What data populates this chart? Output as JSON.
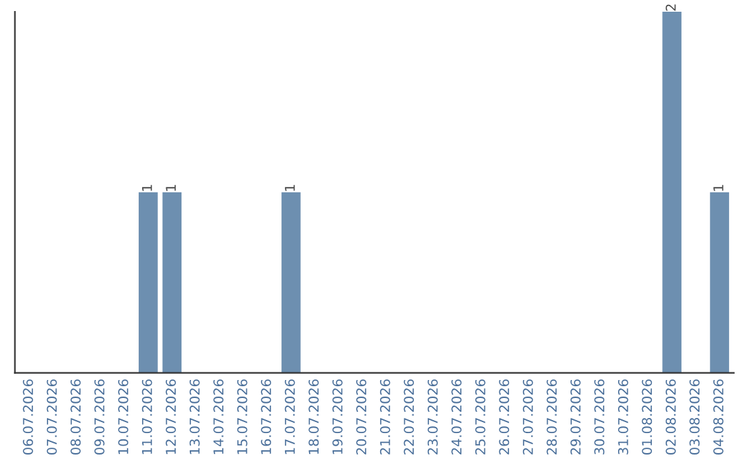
{
  "chart_data": {
    "type": "bar",
    "categories": [
      "06.07.2026",
      "07.07.2026",
      "08.07.2026",
      "09.07.2026",
      "10.07.2026",
      "11.07.2026",
      "12.07.2026",
      "13.07.2026",
      "14.07.2026",
      "15.07.2026",
      "16.07.2026",
      "17.07.2026",
      "18.07.2026",
      "19.07.2026",
      "20.07.2026",
      "21.07.2026",
      "22.07.2026",
      "23.07.2026",
      "24.07.2026",
      "25.07.2026",
      "26.07.2026",
      "27.07.2026",
      "28.07.2026",
      "29.07.2026",
      "30.07.2026",
      "31.07.2026",
      "01.08.2026",
      "02.08.2026",
      "03.08.2026",
      "04.08.2026"
    ],
    "values": [
      0,
      0,
      0,
      0,
      0,
      1,
      1,
      0,
      0,
      0,
      0,
      1,
      0,
      0,
      0,
      0,
      0,
      0,
      0,
      0,
      0,
      0,
      0,
      0,
      0,
      0,
      0,
      2,
      0,
      1
    ],
    "value_labels": [
      null,
      null,
      null,
      null,
      null,
      "1",
      "1",
      null,
      null,
      null,
      null,
      "1",
      null,
      null,
      null,
      null,
      null,
      null,
      null,
      null,
      null,
      null,
      null,
      null,
      null,
      null,
      null,
      "2",
      null,
      "1"
    ],
    "color": "#6d8fb0",
    "tick_labels": "x",
    "grid": false
  }
}
